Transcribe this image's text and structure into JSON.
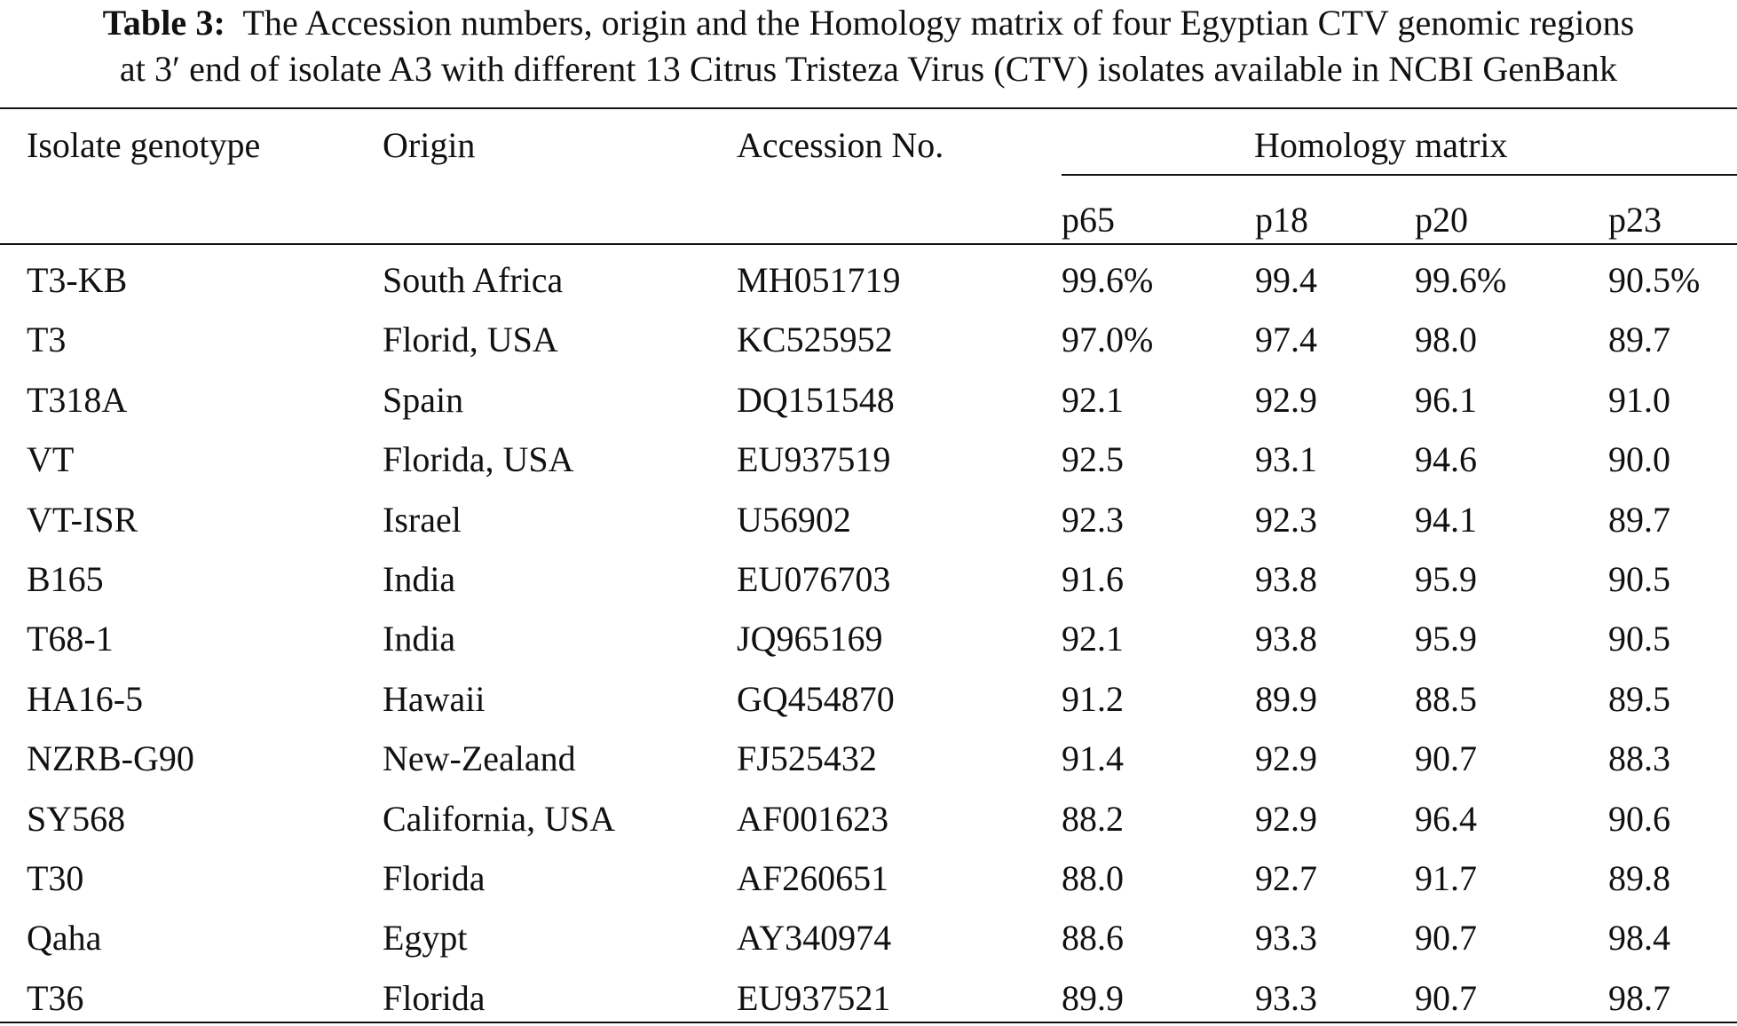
{
  "caption": {
    "label": "Table 3:",
    "line1": "The Accession numbers, origin and the Homology matrix of four Egyptian CTV genomic regions",
    "line2": "at 3′ end of isolate A3 with different 13 Citrus Tristeza Virus (CTV) isolates available in NCBI GenBank"
  },
  "headers": {
    "isolate": "Isolate genotype",
    "origin": "Origin",
    "accession": "Accession No.",
    "homology": "Homology matrix",
    "regions": [
      "p65",
      "p18",
      "p20",
      "p23"
    ]
  },
  "rows": [
    [
      "T3-KB",
      "South Africa",
      "MH051719",
      "99.6%",
      "99.4",
      "99.6%",
      "90.5%"
    ],
    [
      "T3",
      "Florid, USA",
      "KC525952",
      "97.0%",
      "97.4",
      "98.0",
      "89.7"
    ],
    [
      "T318A",
      "Spain",
      "DQ151548",
      "92.1",
      "92.9",
      "96.1",
      "91.0"
    ],
    [
      "VT",
      "Florida, USA",
      "EU937519",
      "92.5",
      "93.1",
      "94.6",
      "90.0"
    ],
    [
      "VT-ISR",
      "Israel",
      "U56902",
      "92.3",
      "92.3",
      "94.1",
      "89.7"
    ],
    [
      "B165",
      "India",
      "EU076703",
      "91.6",
      "93.8",
      "95.9",
      "90.5"
    ],
    [
      "T68-1",
      "India",
      "JQ965169",
      "92.1",
      "93.8",
      "95.9",
      "90.5"
    ],
    [
      "HA16-5",
      "Hawaii",
      "GQ454870",
      "91.2",
      "89.9",
      "88.5",
      "89.5"
    ],
    [
      "NZRB-G90",
      "New-Zealand",
      "FJ525432",
      "91.4",
      "92.9",
      "90.7",
      "88.3"
    ],
    [
      "SY568",
      "California, USA",
      "AF001623",
      "88.2",
      "92.9",
      "96.4",
      "90.6"
    ],
    [
      "T30",
      "Florida",
      "AF260651",
      "88.0",
      "92.7",
      "91.7",
      "89.8"
    ],
    [
      "Qaha",
      "Egypt",
      "AY340974",
      "88.6",
      "93.3",
      "90.7",
      "98.4"
    ],
    [
      "T36",
      "Florida",
      "EU937521",
      "89.9",
      "93.3",
      "90.7",
      "98.7"
    ]
  ]
}
